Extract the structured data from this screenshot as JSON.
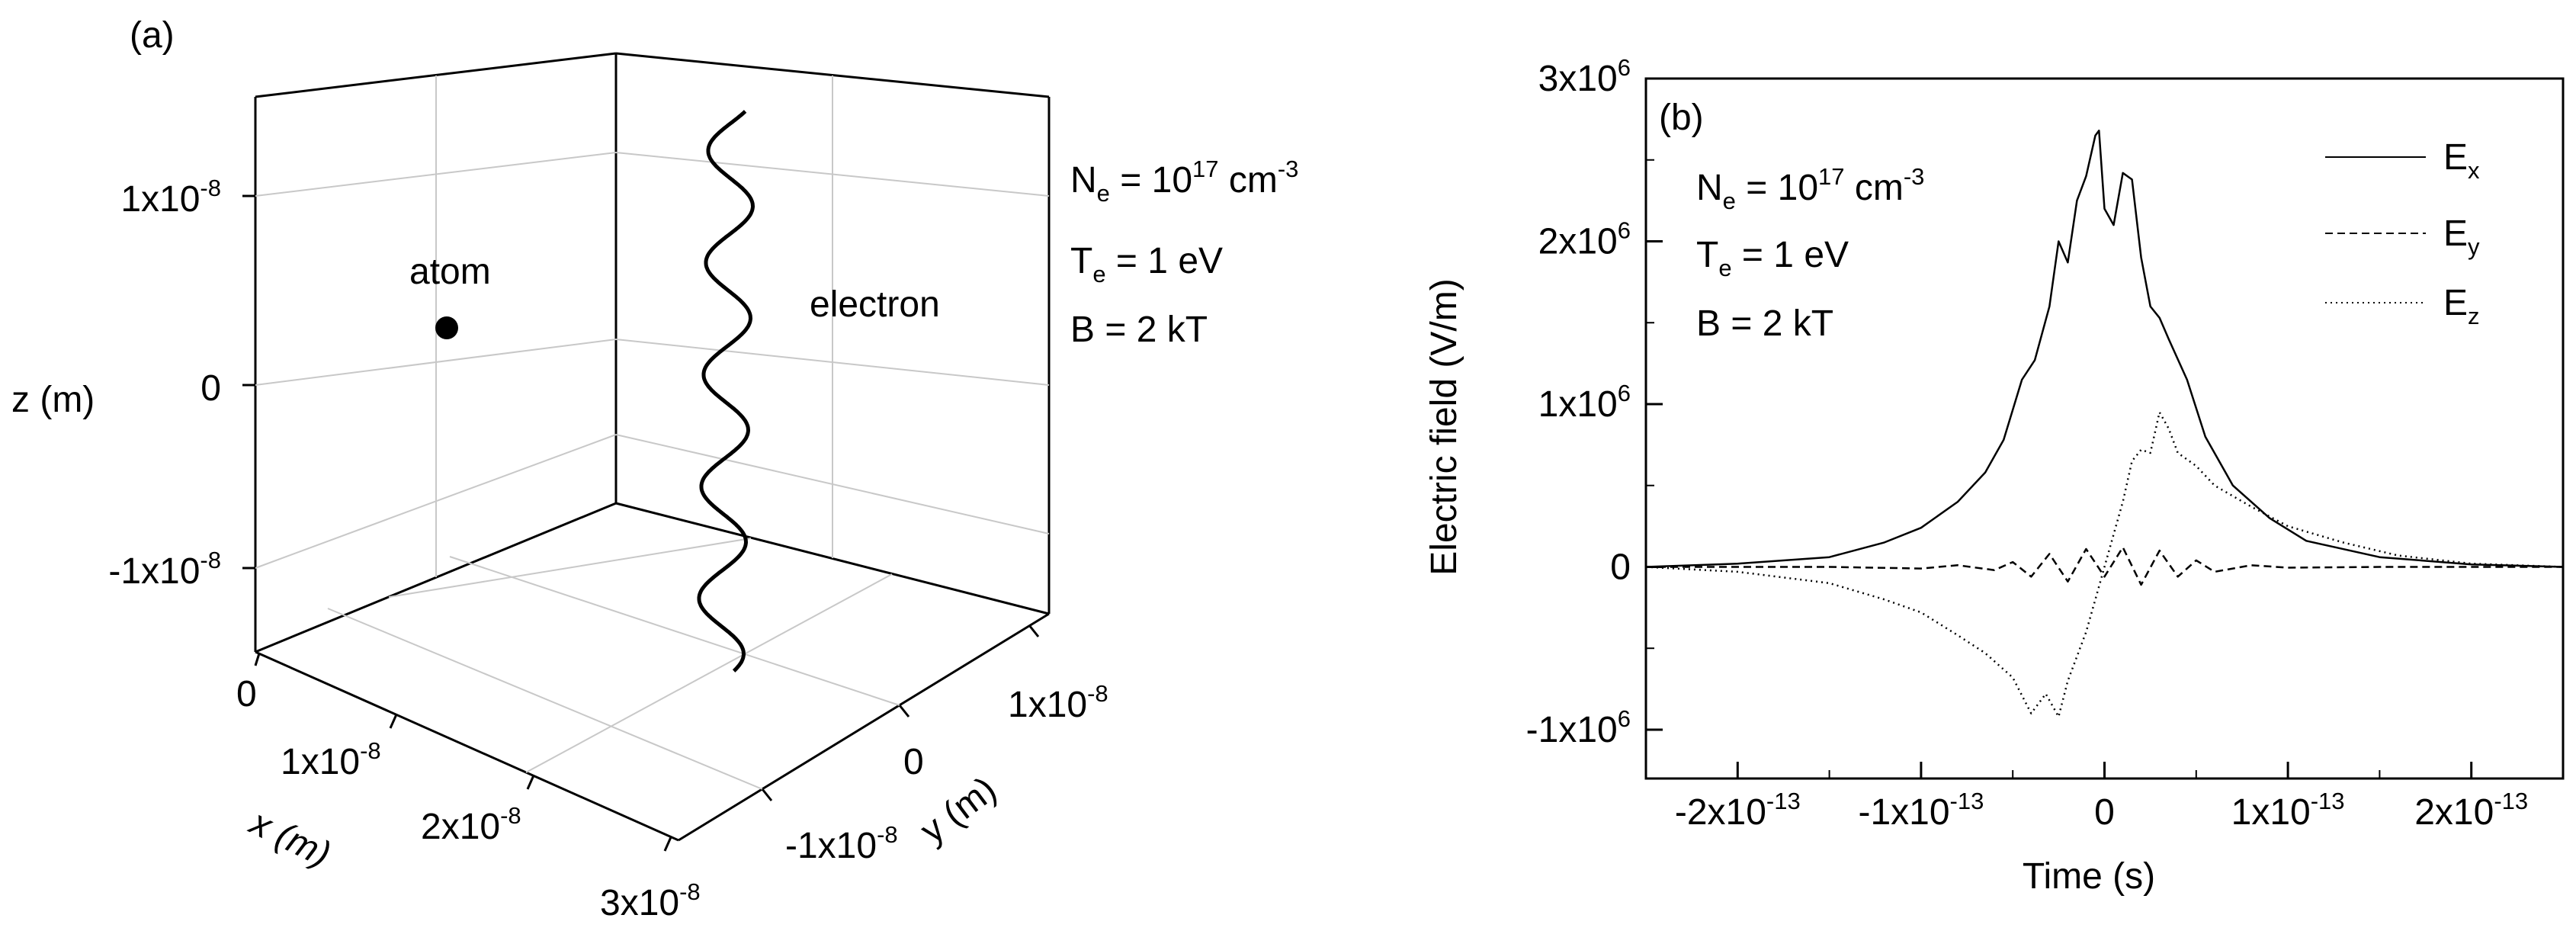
{
  "chart_data": [
    {
      "panel": "a",
      "type": "scatter",
      "projection": "3d",
      "panel_label": "(a)",
      "axes": {
        "x": {
          "label": "x (m)",
          "ticks": [
            {
              "base": "0",
              "exp": ""
            },
            {
              "base": "1x10",
              "exp": "-8"
            },
            {
              "base": "2x10",
              "exp": "-8"
            },
            {
              "base": "3x10",
              "exp": "-8"
            }
          ]
        },
        "y": {
          "label": "y (m)",
          "ticks": [
            {
              "base": "-1x10",
              "exp": "-8"
            },
            {
              "base": "0",
              "exp": ""
            },
            {
              "base": "1x10",
              "exp": "-8"
            }
          ]
        },
        "z": {
          "label": "z (m)",
          "ticks": [
            {
              "base": "1x10",
              "exp": "-8"
            },
            {
              "base": "0",
              "exp": ""
            },
            {
              "base": "-1x10",
              "exp": "-8"
            }
          ]
        }
      },
      "atom": {
        "label": "atom"
      },
      "electron": {
        "label": "electron",
        "turns": 5
      },
      "params": [
        {
          "pre": "N",
          "sub": "e",
          "mid": " = 10",
          "sup": "17",
          "post": " cm",
          "sup2": "-3"
        },
        {
          "pre": "T",
          "sub": "e",
          "mid": " = 1 eV",
          "sup": "",
          "post": "",
          "sup2": ""
        },
        {
          "pre": "B = 2 kT",
          "sub": "",
          "mid": "",
          "sup": "",
          "post": "",
          "sup2": ""
        }
      ]
    },
    {
      "panel": "b",
      "type": "line",
      "panel_label": "(b)",
      "xlabel": "Time (s)",
      "ylabel": "Electric field (V/m)",
      "xlim": [
        -2.5e-13,
        2.5e-13
      ],
      "ylim": [
        -1300000.0,
        3000000.0
      ],
      "xticks": [
        {
          "v": -2e-13,
          "base": "-2x10",
          "exp": "-13"
        },
        {
          "v": -1e-13,
          "base": "-1x10",
          "exp": "-13"
        },
        {
          "v": 0,
          "base": "0",
          "exp": ""
        },
        {
          "v": 1e-13,
          "base": "1x10",
          "exp": "-13"
        },
        {
          "v": 2e-13,
          "base": "2x10",
          "exp": "-13"
        }
      ],
      "yticks": [
        {
          "v": -1000000.0,
          "base": "-1x10",
          "exp": "6"
        },
        {
          "v": 0,
          "base": "0",
          "exp": ""
        },
        {
          "v": 1000000.0,
          "base": "1x10",
          "exp": "6"
        },
        {
          "v": 2000000.0,
          "base": "2x10",
          "exp": "6"
        },
        {
          "v": 3000000.0,
          "base": "3x10",
          "exp": "6"
        }
      ],
      "params": [
        {
          "pre": "N",
          "sub": "e",
          "mid": " = 10",
          "sup": "17",
          "post": " cm",
          "sup2": "-3"
        },
        {
          "pre": "T",
          "sub": "e",
          "mid": " = 1 eV",
          "sup": "",
          "post": "",
          "sup2": ""
        },
        {
          "pre": "B = 2 kT",
          "sub": "",
          "mid": "",
          "sup": "",
          "post": "",
          "sup2": ""
        }
      ],
      "legend_position": "top-right",
      "series": [
        {
          "name": "E",
          "sub": "x",
          "style": "solid",
          "x": [
            -2.5e-13,
            -2e-13,
            -1.5e-13,
            -1.2e-13,
            -1e-13,
            -8e-14,
            -6.5e-14,
            -5.5e-14,
            -4.5e-14,
            -3.8e-14,
            -3e-14,
            -2.5e-14,
            -2e-14,
            -1.5e-14,
            -1e-14,
            -5e-15,
            -3e-15,
            0,
            5e-15,
            1e-14,
            1.5e-14,
            2e-14,
            2.5e-14,
            3e-14,
            3.5e-14,
            4.5e-14,
            5.5e-14,
            7e-14,
            9e-14,
            1.1e-13,
            1.5e-13,
            2e-13,
            2.5e-13
          ],
          "y": [
            0,
            20000,
            60000,
            150000,
            240000,
            400000,
            580000,
            780000,
            1150000,
            1270000,
            1600000,
            2000000,
            1870000,
            2250000,
            2400000,
            2650000,
            2680000,
            2200000,
            2100000,
            2420000,
            2380000,
            1900000,
            1600000,
            1530000,
            1400000,
            1150000,
            800000,
            500000,
            300000,
            160000,
            60000,
            15000,
            0
          ]
        },
        {
          "name": "E",
          "sub": "y",
          "style": "dashed",
          "x": [
            -2.5e-13,
            -1.5e-13,
            -1e-13,
            -8e-14,
            -6e-14,
            -5e-14,
            -4e-14,
            -3e-14,
            -2e-14,
            -1e-14,
            0,
            1e-14,
            2e-14,
            3e-14,
            4e-14,
            5e-14,
            6e-14,
            8e-14,
            1e-13,
            1.5e-13,
            2.5e-13
          ],
          "y": [
            0,
            0,
            -10000,
            10000,
            -20000,
            30000,
            -60000,
            80000,
            -90000,
            110000,
            -60000,
            120000,
            -110000,
            100000,
            -60000,
            40000,
            -30000,
            10000,
            -5000,
            0,
            0
          ]
        },
        {
          "name": "E",
          "sub": "z",
          "style": "dotted",
          "x": [
            -2.5e-13,
            -2e-13,
            -1.5e-13,
            -1.2e-13,
            -1e-13,
            -8e-14,
            -6.5e-14,
            -5e-14,
            -4e-14,
            -3.2e-14,
            -2.5e-14,
            -2e-14,
            -1.5e-14,
            -1e-14,
            -5e-15,
            0,
            5e-15,
            1e-14,
            1.5e-14,
            2e-14,
            2.5e-14,
            3e-14,
            3.5e-14,
            4e-14,
            5e-14,
            6e-14,
            8e-14,
            1e-13,
            1.3e-13,
            1.6e-13,
            2e-13,
            2.5e-13
          ],
          "y": [
            0,
            -30000,
            -100000,
            -200000,
            -280000,
            -420000,
            -530000,
            -680000,
            -900000,
            -780000,
            -920000,
            -700000,
            -550000,
            -400000,
            -200000,
            0,
            200000,
            400000,
            650000,
            720000,
            700000,
            950000,
            850000,
            700000,
            620000,
            500000,
            370000,
            250000,
            150000,
            70000,
            20000,
            0
          ]
        }
      ]
    }
  ]
}
